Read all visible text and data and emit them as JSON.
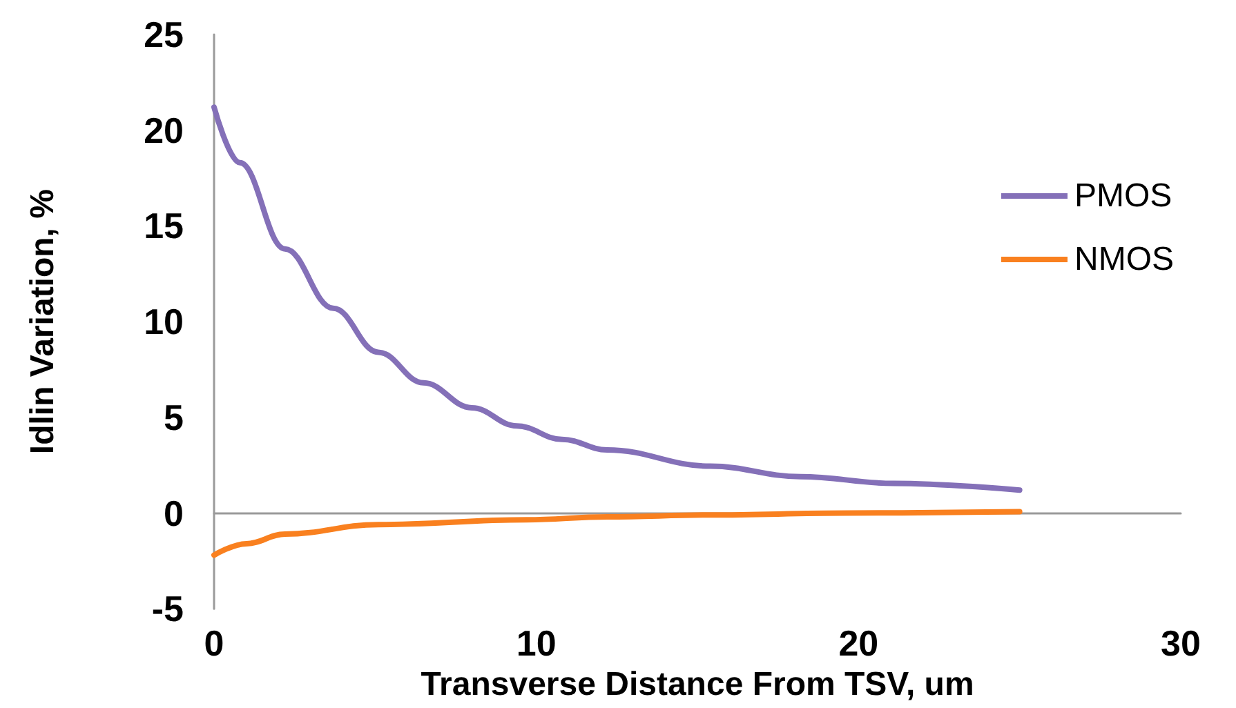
{
  "chart_data": {
    "type": "line",
    "xlabel": "Transverse Distance From TSV, um",
    "ylabel": "Idlin Variation, %",
    "xlim": [
      0,
      30
    ],
    "xticks": [
      0,
      10,
      20,
      30
    ],
    "ylim": [
      -5,
      25
    ],
    "yticks": [
      -5,
      0,
      5,
      10,
      15,
      20,
      25
    ],
    "legend": "right",
    "marker": "none",
    "line_style": "solid",
    "series": [
      {
        "name": "PMOS",
        "color": "#8470b8",
        "x": [
          0,
          0.8,
          2.2,
          3.7,
          5.1,
          6.5,
          8,
          9.4,
          10.8,
          12.2,
          15.4,
          18.2,
          21.1,
          25
        ],
        "values": [
          21.2,
          18.3,
          13.8,
          10.7,
          8.4,
          6.8,
          5.5,
          4.55,
          3.85,
          3.3,
          2.45,
          1.9,
          1.55,
          1.2
        ]
      },
      {
        "name": "NMOS",
        "color": "#f9801f",
        "x": [
          0,
          1,
          2.2,
          5.1,
          9.7,
          12.2,
          15.4,
          19.6,
          25
        ],
        "values": [
          -2.2,
          -1.6,
          -1.1,
          -0.6,
          -0.35,
          -0.2,
          -0.1,
          0,
          0.07
        ]
      }
    ]
  }
}
